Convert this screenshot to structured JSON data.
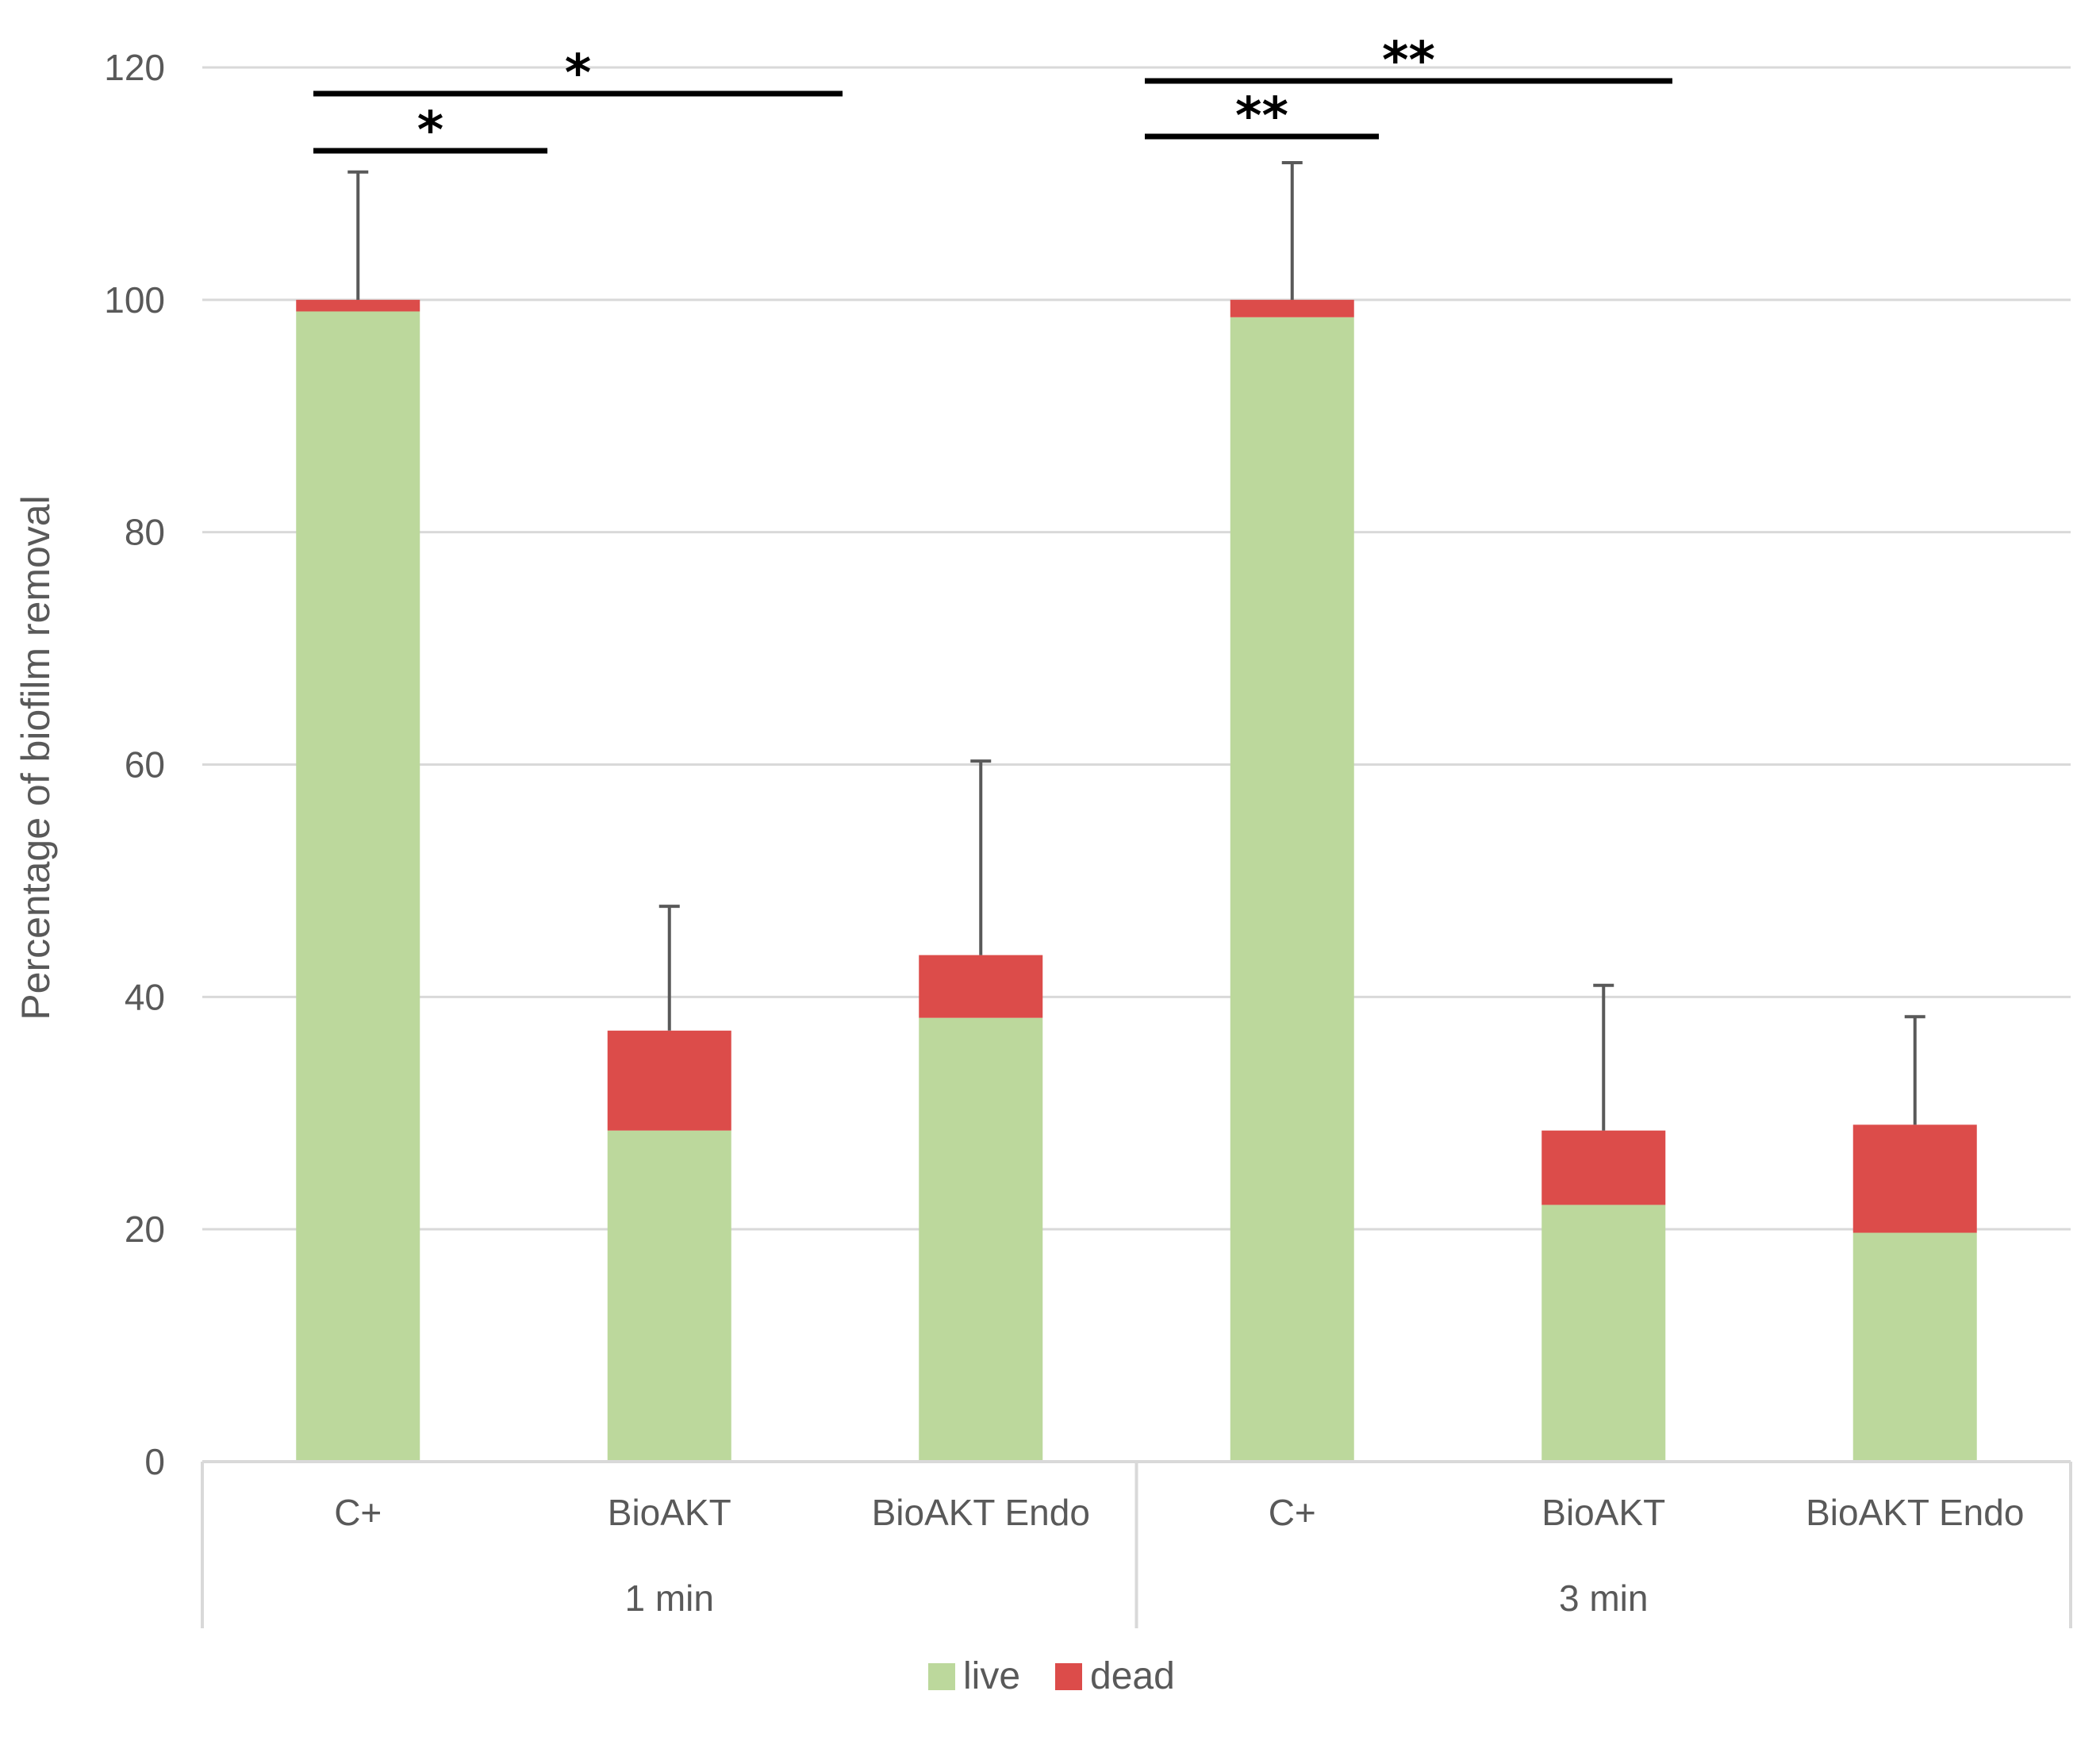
{
  "chart_data": {
    "type": "bar",
    "stacked": true,
    "ylabel": "Percentage of biofilm removal",
    "ylim": [
      0,
      120
    ],
    "yticks": [
      0,
      20,
      40,
      60,
      80,
      100,
      120
    ],
    "grid": true,
    "legend_position": "bottom",
    "groups": [
      {
        "label": "1 min",
        "categories": [
          "C+",
          "BioAKT",
          "BioAKT Endo"
        ]
      },
      {
        "label": "3 min",
        "categories": [
          "C+",
          "BioAKT",
          "BioAKT Endo"
        ]
      }
    ],
    "categories": [
      "C+",
      "BioAKT",
      "BioAKT Endo",
      "C+",
      "BioAKT",
      "BioAKT Endo"
    ],
    "series": [
      {
        "name": "live",
        "color": "#bcd89c",
        "values": [
          99,
          28.5,
          38.2,
          98.5,
          22.1,
          19.7
        ]
      },
      {
        "name": "dead",
        "color": "#dc4c4a",
        "values": [
          1,
          8.6,
          5.4,
          1.5,
          6.4,
          9.3
        ]
      }
    ],
    "error_bars_upper": [
      111,
      47.8,
      60.3,
      111.8,
      41.0,
      38.3
    ],
    "significance": [
      {
        "label": "*",
        "from_category": 0,
        "to_category": 1
      },
      {
        "label": "*",
        "from_category": 0,
        "to_category": 2
      },
      {
        "label": "**",
        "from_category": 3,
        "to_category": 4
      },
      {
        "label": "**",
        "from_category": 3,
        "to_category": 5
      }
    ]
  }
}
